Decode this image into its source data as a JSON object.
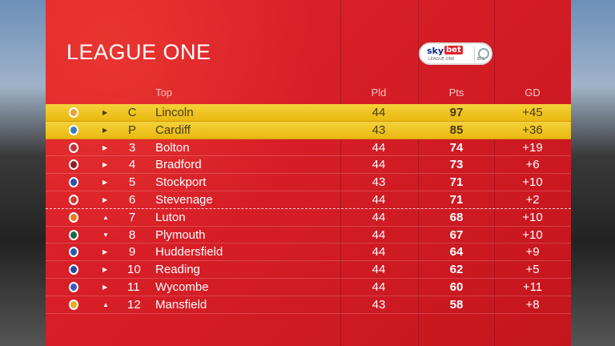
{
  "title": "LEAGUE ONE",
  "logo": {
    "sky": "sky",
    "bet": "bet",
    "sub": "LEAGUE ONE",
    "efl": "EFL"
  },
  "headers": {
    "name": "Top",
    "pld": "Pld",
    "pts": "Pts",
    "gd": "GD"
  },
  "rows": [
    {
      "pos": "C",
      "team": "Lincoln",
      "pld": "44",
      "pts": "97",
      "gd": "+45",
      "move": "right",
      "badge": "#e9a040",
      "highlight": true
    },
    {
      "pos": "P",
      "team": "Cardiff",
      "pld": "43",
      "pts": "85",
      "gd": "+36",
      "move": "right",
      "badge": "#3a7ac8",
      "highlight": true
    },
    {
      "pos": "3",
      "team": "Bolton",
      "pld": "44",
      "pts": "74",
      "gd": "+19",
      "move": "right",
      "badge": "#c8303a"
    },
    {
      "pos": "4",
      "team": "Bradford",
      "pld": "44",
      "pts": "73",
      "gd": "+6",
      "move": "right",
      "badge": "#8a2030"
    },
    {
      "pos": "5",
      "team": "Stockport",
      "pld": "43",
      "pts": "71",
      "gd": "+10",
      "move": "right",
      "badge": "#2a50b0"
    },
    {
      "pos": "6",
      "team": "Stevenage",
      "pld": "44",
      "pts": "71",
      "gd": "+2",
      "move": "right",
      "badge": "#c84030"
    },
    {
      "pos": "7",
      "team": "Luton",
      "pld": "44",
      "pts": "68",
      "gd": "+10",
      "move": "up",
      "badge": "#e87a20"
    },
    {
      "pos": "8",
      "team": "Plymouth",
      "pld": "44",
      "pts": "67",
      "gd": "+10",
      "move": "down",
      "badge": "#1a6a4a"
    },
    {
      "pos": "9",
      "team": "Huddersfield",
      "pld": "44",
      "pts": "64",
      "gd": "+9",
      "move": "right",
      "badge": "#2a5ab0"
    },
    {
      "pos": "10",
      "team": "Reading",
      "pld": "44",
      "pts": "62",
      "gd": "+5",
      "move": "right",
      "badge": "#2a4aa0"
    },
    {
      "pos": "11",
      "team": "Wycombe",
      "pld": "44",
      "pts": "60",
      "gd": "+11",
      "move": "right",
      "badge": "#3a5ab8"
    },
    {
      "pos": "12",
      "team": "Mansfield",
      "pld": "43",
      "pts": "58",
      "gd": "+8",
      "move": "up",
      "badge": "#e8b020"
    }
  ]
}
